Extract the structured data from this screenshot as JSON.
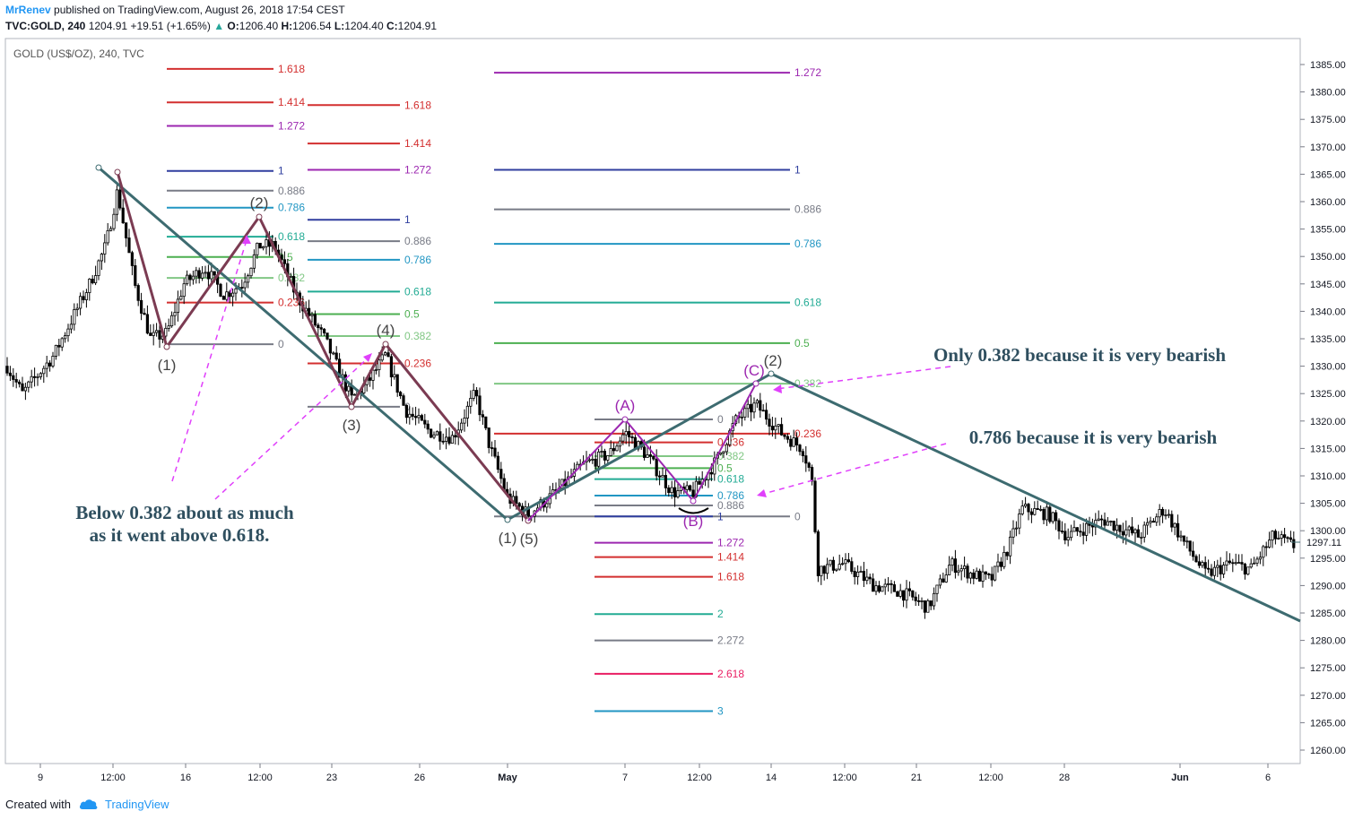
{
  "header": {
    "author": "MrRenev",
    "published": "published on TradingView.com, August 26, 2018 17:54 CEST",
    "symbol": "TVC:GOLD, 240",
    "last": "1204.91",
    "change": "+19.51 (+1.65%)",
    "open_label": "O:",
    "open": "1206.40",
    "high_label": "H:",
    "high": "1206.54",
    "low_label": "L:",
    "low": "1204.40",
    "close_label": "C:",
    "close": "1204.91"
  },
  "footer": {
    "created": "Created with",
    "brand": "TradingView"
  },
  "colors": {
    "up": "#26a69a",
    "candle": "#000000",
    "trend": "#3d6b70",
    "wave": "#7b3b52",
    "abc": "#9c27b0",
    "arrow": "#e040fb",
    "annotation": "#2f4f5f"
  },
  "chart_data": {
    "type": "candlestick",
    "title": "GOLD (US$/OZ), 240, TVC",
    "price_label": "1297.11",
    "yaxis": {
      "ticks": [
        1385,
        1380,
        1375,
        1370,
        1365,
        1360,
        1355,
        1350,
        1345,
        1340,
        1335,
        1330,
        1325,
        1320,
        1315,
        1310,
        1305,
        1300,
        1295,
        1290,
        1285,
        1280,
        1275,
        1270,
        1265,
        1260
      ],
      "suffix": ".00",
      "range": [
        1256,
        1391
      ]
    },
    "xaxis": {
      "ticks": [
        "9",
        "12:00",
        "16",
        "12:00",
        "23",
        "26",
        "May",
        "7",
        "12:00",
        "14",
        "12:00",
        "21",
        "12:00",
        "28",
        "Jun",
        "6"
      ]
    },
    "fib_sets": [
      {
        "levels": [
          {
            "label": "1.618",
            "price": 1384.2,
            "color": "#d32f2f"
          },
          {
            "label": "1.414",
            "price": 1378.1,
            "color": "#d32f2f"
          },
          {
            "label": "1.272",
            "price": 1373.8,
            "color": "#9c27b0"
          },
          {
            "label": "1",
            "price": 1365.6,
            "color": "#303f9f"
          },
          {
            "label": "0.886",
            "price": 1362.0,
            "color": "#787b86"
          },
          {
            "label": "0.786",
            "price": 1358.9,
            "color": "#2196c3"
          },
          {
            "label": "0.618",
            "price": 1353.6,
            "color": "#22ab94"
          },
          {
            "label": "0.5",
            "price": 1349.9,
            "color": "#4caf50"
          },
          {
            "label": "0.382",
            "price": 1346.1,
            "color": "#81c784"
          },
          {
            "label": "0.236",
            "price": 1341.6,
            "color": "#d32f2f"
          },
          {
            "label": "0",
            "price": 1334.0,
            "color": "#787b86"
          }
        ]
      },
      {
        "levels": [
          {
            "label": "1.618",
            "price": 1377.6,
            "color": "#d32f2f"
          },
          {
            "label": "1.414",
            "price": 1370.6,
            "color": "#d32f2f"
          },
          {
            "label": "1.272",
            "price": 1365.8,
            "color": "#9c27b0"
          },
          {
            "label": "1",
            "price": 1356.7,
            "color": "#303f9f"
          },
          {
            "label": "0.886",
            "price": 1352.8,
            "color": "#787b86"
          },
          {
            "label": "0.786",
            "price": 1349.4,
            "color": "#2196c3"
          },
          {
            "label": "0.618",
            "price": 1343.6,
            "color": "#22ab94"
          },
          {
            "label": "0.5",
            "price": 1339.5,
            "color": "#4caf50"
          },
          {
            "label": "0.382",
            "price": 1335.5,
            "color": "#81c784"
          },
          {
            "label": "0.236",
            "price": 1330.5,
            "color": "#d32f2f"
          },
          {
            "label": "0",
            "price": 1322.6,
            "color": "#787b86"
          }
        ]
      },
      {
        "levels": [
          {
            "label": "1.272",
            "price": 1383.5,
            "color": "#9c27b0"
          },
          {
            "label": "1",
            "price": 1365.8,
            "color": "#303f9f"
          },
          {
            "label": "0.886",
            "price": 1358.6,
            "color": "#787b86"
          },
          {
            "label": "0.786",
            "price": 1352.3,
            "color": "#2196c3"
          },
          {
            "label": "0.618",
            "price": 1341.6,
            "color": "#22ab94"
          },
          {
            "label": "0.5",
            "price": 1334.2,
            "color": "#4caf50"
          },
          {
            "label": "0.382",
            "price": 1326.8,
            "color": "#81c784"
          },
          {
            "label": "0.236",
            "price": 1317.7,
            "color": "#d32f2f"
          },
          {
            "label": "0",
            "price": 1302.6,
            "color": "#787b86"
          }
        ]
      },
      {
        "levels": [
          {
            "label": "0",
            "price": 1320.3,
            "color": "#787b86"
          },
          {
            "label": "0.236",
            "price": 1316.1,
            "color": "#d32f2f"
          },
          {
            "label": "0.382",
            "price": 1313.6,
            "color": "#81c784"
          },
          {
            "label": "0.5",
            "price": 1311.4,
            "color": "#4caf50"
          },
          {
            "label": "0.618",
            "price": 1309.4,
            "color": "#22ab94"
          },
          {
            "label": "0.786",
            "price": 1306.4,
            "color": "#2196c3"
          },
          {
            "label": "0.886",
            "price": 1304.6,
            "color": "#787b86"
          },
          {
            "label": "1",
            "price": 1302.6,
            "color": "#303f9f"
          },
          {
            "label": "1.272",
            "price": 1297.8,
            "color": "#9c27b0"
          },
          {
            "label": "1.414",
            "price": 1295.2,
            "color": "#d32f2f"
          },
          {
            "label": "1.618",
            "price": 1291.6,
            "color": "#d32f2f"
          },
          {
            "label": "2",
            "price": 1284.8,
            "color": "#22ab94"
          },
          {
            "label": "2.272",
            "price": 1280.0,
            "color": "#787b86"
          },
          {
            "label": "2.618",
            "price": 1273.9,
            "color": "#e91e63"
          },
          {
            "label": "3",
            "price": 1267.1,
            "color": "#2196c3"
          }
        ]
      }
    ],
    "wave_labels": [
      "(1)",
      "(2)",
      "(3)",
      "(4)",
      "(5)",
      "(1)",
      "(2)"
    ],
    "abc_labels": [
      "(A)",
      "(B)",
      "(C)"
    ],
    "annotations": [
      "Only 0.382 because it is very bearish",
      "0.786 because it is very bearish",
      "Below 0.382 about as much",
      "as it went above 0.618."
    ]
  }
}
